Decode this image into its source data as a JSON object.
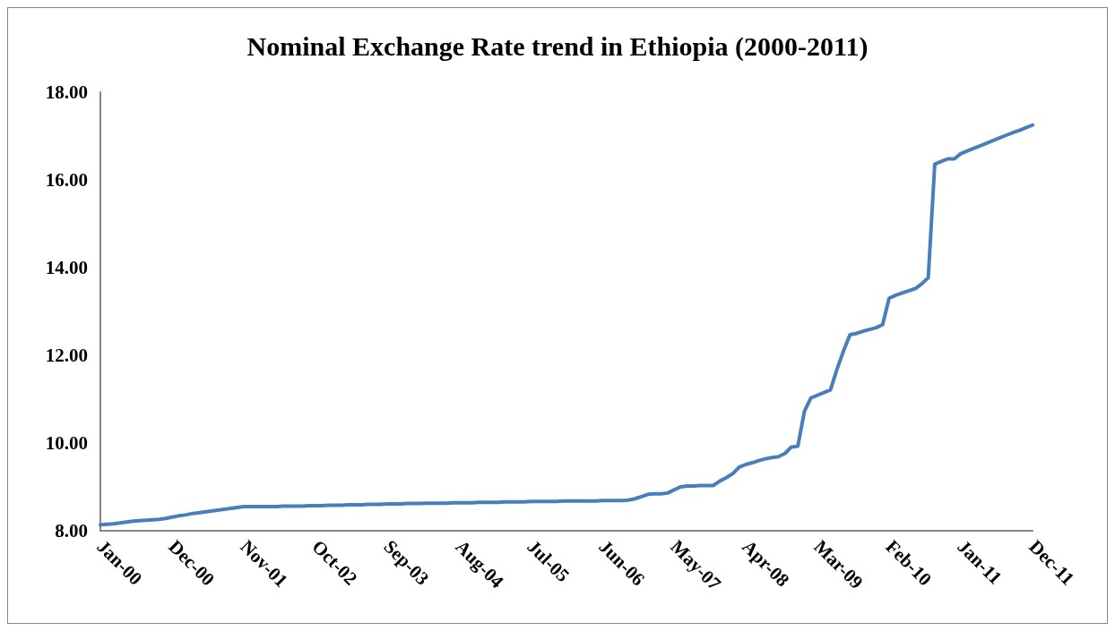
{
  "chart_data": {
    "type": "line",
    "title": "Nominal Exchange Rate trend in Ethiopia (2000-2011)",
    "categories": [
      "Jan-00",
      null,
      null,
      null,
      null,
      null,
      null,
      null,
      null,
      null,
      null,
      "Dec-00",
      null,
      null,
      null,
      null,
      null,
      null,
      null,
      null,
      null,
      null,
      "Nov-01",
      null,
      null,
      null,
      null,
      null,
      null,
      null,
      null,
      null,
      null,
      "Oct-02",
      null,
      null,
      null,
      null,
      null,
      null,
      null,
      null,
      null,
      null,
      "Sep-03",
      null,
      null,
      null,
      null,
      null,
      null,
      null,
      null,
      null,
      null,
      "Aug-04",
      null,
      null,
      null,
      null,
      null,
      null,
      null,
      null,
      null,
      null,
      "Jul-05",
      null,
      null,
      null,
      null,
      null,
      null,
      null,
      null,
      null,
      null,
      "Jun-06",
      null,
      null,
      null,
      null,
      null,
      null,
      null,
      null,
      null,
      null,
      "May-07",
      null,
      null,
      null,
      null,
      null,
      null,
      null,
      null,
      null,
      null,
      "Apr-08",
      null,
      null,
      null,
      null,
      null,
      null,
      null,
      null,
      null,
      null,
      "Mar-09",
      null,
      null,
      null,
      null,
      null,
      null,
      null,
      null,
      null,
      null,
      "Feb-10",
      null,
      null,
      null,
      null,
      null,
      null,
      null,
      null,
      null,
      null,
      "Jan-11",
      null,
      null,
      null,
      null,
      null,
      null,
      null,
      null,
      null,
      null,
      "Dec-11"
    ],
    "series": [
      {
        "color": "#4a7ebb",
        "values": [
          8.14,
          8.15,
          8.16,
          8.18,
          8.2,
          8.22,
          8.23,
          8.24,
          8.25,
          8.26,
          8.28,
          8.31,
          8.34,
          8.36,
          8.39,
          8.41,
          8.43,
          8.45,
          8.47,
          8.49,
          8.51,
          8.53,
          8.55,
          8.55,
          8.55,
          8.55,
          8.55,
          8.55,
          8.56,
          8.56,
          8.56,
          8.56,
          8.57,
          8.57,
          8.57,
          8.58,
          8.58,
          8.58,
          8.59,
          8.59,
          8.59,
          8.6,
          8.6,
          8.6,
          8.61,
          8.61,
          8.61,
          8.62,
          8.62,
          8.62,
          8.63,
          8.63,
          8.63,
          8.63,
          8.64,
          8.64,
          8.64,
          8.64,
          8.65,
          8.65,
          8.65,
          8.65,
          8.66,
          8.66,
          8.66,
          8.66,
          8.67,
          8.67,
          8.67,
          8.67,
          8.67,
          8.68,
          8.68,
          8.68,
          8.68,
          8.68,
          8.68,
          8.69,
          8.69,
          8.69,
          8.69,
          8.7,
          8.73,
          8.78,
          8.83,
          8.84,
          8.84,
          8.86,
          8.93,
          9.0,
          9.02,
          9.02,
          9.03,
          9.03,
          9.03,
          9.13,
          9.21,
          9.3,
          9.45,
          9.51,
          9.55,
          9.6,
          9.64,
          9.67,
          9.69,
          9.76,
          9.91,
          9.93,
          10.72,
          11.03,
          11.09,
          11.15,
          11.21,
          11.68,
          12.1,
          12.47,
          12.5,
          12.55,
          12.59,
          12.63,
          12.7,
          13.3,
          13.37,
          13.42,
          13.47,
          13.52,
          13.63,
          13.77,
          16.36,
          16.42,
          16.48,
          16.48,
          16.6,
          16.66,
          16.72,
          16.78,
          16.84,
          16.9,
          16.96,
          17.02,
          17.08,
          17.13,
          17.19,
          17.25
        ]
      }
    ],
    "ylim": [
      8,
      18
    ],
    "yticks": [
      {
        "value": 8,
        "label": "8.00"
      },
      {
        "value": 10,
        "label": "10.00"
      },
      {
        "value": 12,
        "label": "12.00"
      },
      {
        "value": 14,
        "label": "14.00"
      },
      {
        "value": 16,
        "label": "16.00"
      },
      {
        "value": 18,
        "label": "18.00"
      }
    ],
    "grid": false,
    "marker": "none",
    "line_style": "solid"
  }
}
